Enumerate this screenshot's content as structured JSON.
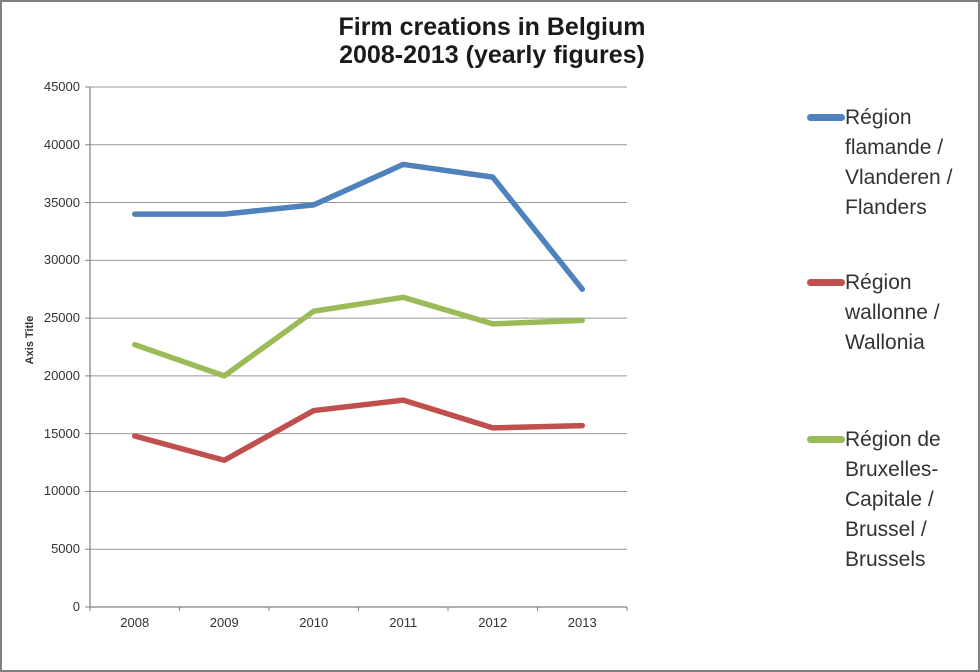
{
  "chart_data": {
    "type": "line",
    "title": "Firm creations in Belgium 2008-2013 (yearly figures)",
    "title_lines": [
      "Firm creations in Belgium",
      "2008-2013 (yearly figures)"
    ],
    "ylabel": "Axis Title",
    "xlabel": "",
    "categories": [
      "2008",
      "2009",
      "2010",
      "2011",
      "2012",
      "2013"
    ],
    "series": [
      {
        "name": "Région flamande / Vlanderen / Flanders",
        "color": "#4F81BD",
        "values": [
          34000,
          34000,
          34800,
          38300,
          37200,
          27500
        ]
      },
      {
        "name": "Région wallonne / Wallonia",
        "color": "#C0504D",
        "values": [
          14800,
          12700,
          17000,
          17900,
          15500,
          15700
        ]
      },
      {
        "name": "Région de Bruxelles-Capitale / Brussel / Brussels",
        "color": "#9BBB59",
        "values": [
          22700,
          20000,
          25600,
          26800,
          24500,
          24800
        ]
      }
    ],
    "ylim": [
      0,
      45000
    ],
    "ytick_step": 5000,
    "grid": true,
    "legend_position": "right",
    "colors": {
      "gridline": "#999999",
      "axis": "#808080",
      "text": "#333333",
      "border": "#7f7f7f"
    }
  }
}
